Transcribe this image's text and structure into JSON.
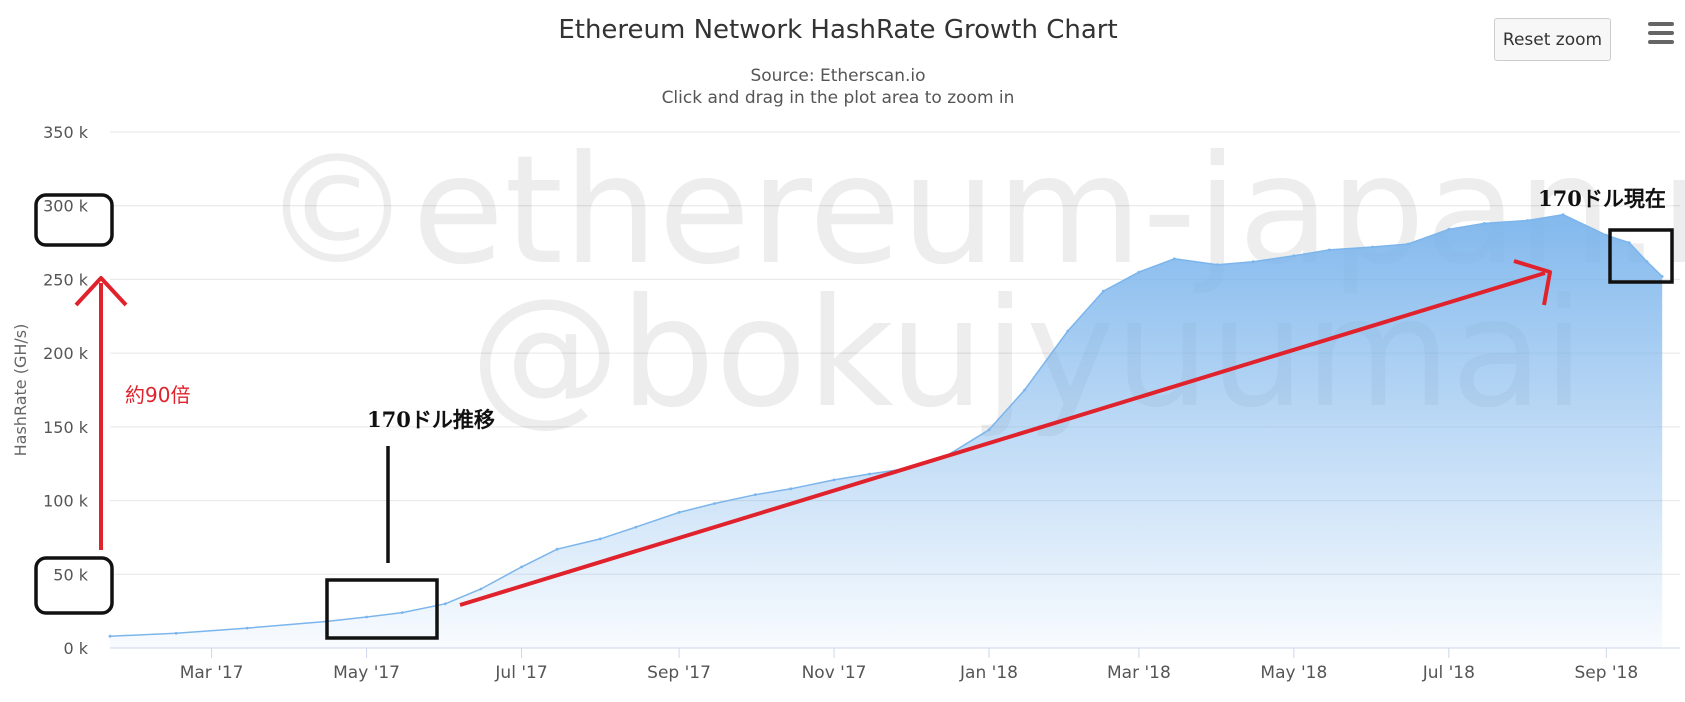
{
  "chart_data": {
    "type": "area",
    "title": "Ethereum Network HashRate Growth Chart",
    "subtitle_lines": [
      "Source: Etherscan.io",
      "Click and drag in the plot area to zoom in"
    ],
    "ylabel": "HashRate (GH/s)",
    "xlabel": "",
    "ylim": [
      0,
      350000
    ],
    "xlim": [
      "2017-01-20",
      "2018-09-30"
    ],
    "yticks": [
      0,
      50000,
      100000,
      150000,
      200000,
      250000,
      300000,
      350000
    ],
    "ytick_labels": [
      "0 k",
      "50 k",
      "100 k",
      "150 k",
      "200 k",
      "250 k",
      "300 k",
      "350 k"
    ],
    "xticks": [
      "2017-03-01",
      "2017-05-01",
      "2017-07-01",
      "2017-09-01",
      "2017-11-01",
      "2018-01-01",
      "2018-03-01",
      "2018-05-01",
      "2018-07-01",
      "2018-09-01"
    ],
    "xtick_labels": [
      "Mar '17",
      "May '17",
      "Jul '17",
      "Sep '17",
      "Nov '17",
      "Jan '18",
      "Mar '18",
      "May '18",
      "Jul '18",
      "Sep '18"
    ],
    "grid": true,
    "legend": false,
    "series": [
      {
        "color": "#7cb5ec",
        "points": [
          [
            "2017-01-20",
            8000
          ],
          [
            "2017-02-15",
            10000
          ],
          [
            "2017-03-15",
            13500
          ],
          [
            "2017-04-15",
            18000
          ],
          [
            "2017-05-01",
            21000
          ],
          [
            "2017-05-15",
            24000
          ],
          [
            "2017-06-01",
            30000
          ],
          [
            "2017-06-15",
            40000
          ],
          [
            "2017-07-01",
            55000
          ],
          [
            "2017-07-15",
            67000
          ],
          [
            "2017-08-01",
            74000
          ],
          [
            "2017-08-15",
            82000
          ],
          [
            "2017-09-01",
            92000
          ],
          [
            "2017-09-15",
            98000
          ],
          [
            "2017-10-01",
            104000
          ],
          [
            "2017-10-15",
            108000
          ],
          [
            "2017-11-01",
            114000
          ],
          [
            "2017-11-15",
            118000
          ],
          [
            "2017-12-01",
            122000
          ],
          [
            "2017-12-15",
            130000
          ],
          [
            "2018-01-01",
            148000
          ],
          [
            "2018-01-15",
            175000
          ],
          [
            "2018-02-01",
            215000
          ],
          [
            "2018-02-15",
            242000
          ],
          [
            "2018-03-01",
            255000
          ],
          [
            "2018-03-15",
            264000
          ],
          [
            "2018-04-01",
            260000
          ],
          [
            "2018-04-15",
            262000
          ],
          [
            "2018-05-01",
            266000
          ],
          [
            "2018-05-15",
            270000
          ],
          [
            "2018-06-01",
            272000
          ],
          [
            "2018-06-15",
            274000
          ],
          [
            "2018-07-01",
            284000
          ],
          [
            "2018-07-15",
            288000
          ],
          [
            "2018-08-01",
            290000
          ],
          [
            "2018-08-15",
            294000
          ],
          [
            "2018-09-01",
            280000
          ],
          [
            "2018-09-10",
            275000
          ],
          [
            "2018-09-17",
            262000
          ],
          [
            "2018-09-23",
            252000
          ]
        ]
      }
    ]
  },
  "watermark": {
    "line1": "©ethereum-japan.net",
    "line2": "@bokujyuumai"
  },
  "annotations": {
    "trend_label": "170ドル推移",
    "current_label": "170ドル現在",
    "growth_label": "約90倍"
  },
  "toolbar": {
    "reset_zoom_label": "Reset zoom",
    "menu_icon": "hamburger-menu-icon"
  },
  "colors": {
    "area": "#7cb5ec",
    "annotation_red": "#e0222c",
    "annotation_black": "#111111"
  }
}
